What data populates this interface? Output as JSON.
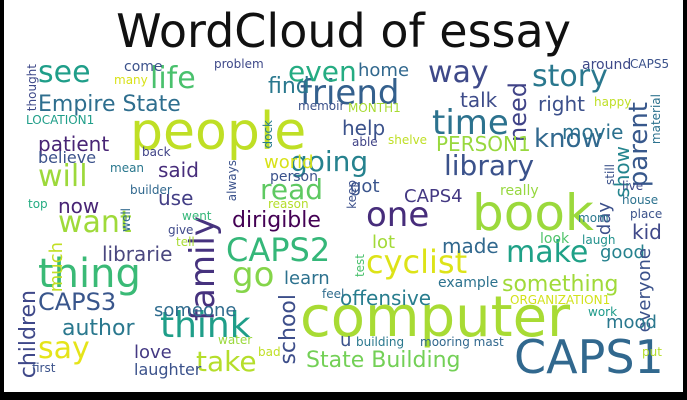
{
  "title": "WordCloud of essay",
  "words": [
    {
      "text": "people",
      "color": "#bfdf25"
    },
    {
      "text": "computer",
      "color": "#a8db34"
    },
    {
      "text": "book",
      "color": "#9bd93c"
    },
    {
      "text": "CAPS1",
      "color": "#31688e"
    },
    {
      "text": "family",
      "color": "#46327e"
    },
    {
      "text": "thing",
      "color": "#3aba76"
    },
    {
      "text": "think",
      "color": "#1f9e89"
    },
    {
      "text": "time",
      "color": "#2c728e"
    },
    {
      "text": "friend",
      "color": "#34608d"
    },
    {
      "text": "one",
      "color": "#472d7b"
    },
    {
      "text": "CAPS2",
      "color": "#35b779"
    },
    {
      "text": "go",
      "color": "#85d54a"
    },
    {
      "text": "going",
      "color": "#26828e"
    },
    {
      "text": "story",
      "color": "#2a788e"
    },
    {
      "text": "parent",
      "color": "#38588c"
    },
    {
      "text": "know",
      "color": "#31688e"
    },
    {
      "text": "library",
      "color": "#3b528b"
    },
    {
      "text": "cyclist",
      "color": "#dde318"
    },
    {
      "text": "make",
      "color": "#1fa187"
    },
    {
      "text": "read",
      "color": "#5ec962"
    },
    {
      "text": "way",
      "color": "#3e4989"
    },
    {
      "text": "want",
      "color": "#9fda3a"
    },
    {
      "text": "see",
      "color": "#1f9e89"
    },
    {
      "text": "life",
      "color": "#4ac16d"
    },
    {
      "text": "even",
      "color": "#25ac82"
    },
    {
      "text": "say",
      "color": "#e5e419"
    },
    {
      "text": "take",
      "color": "#b5de2b"
    },
    {
      "text": "will",
      "color": "#9dd93b"
    },
    {
      "text": "author",
      "color": "#2a788e"
    },
    {
      "text": "CAPS3",
      "color": "#39568c"
    },
    {
      "text": "Empire State",
      "color": "#2e6e8e"
    },
    {
      "text": "State Building",
      "color": "#73d056"
    },
    {
      "text": "dirigible",
      "color": "#440154"
    },
    {
      "text": "offensive",
      "color": "#287d8e"
    },
    {
      "text": "something",
      "color": "#a0da39"
    },
    {
      "text": "school",
      "color": "#3d4e8a"
    },
    {
      "text": "need",
      "color": "#404387"
    },
    {
      "text": "find",
      "color": "#2a788e"
    },
    {
      "text": "home",
      "color": "#31688e"
    },
    {
      "text": "talk",
      "color": "#3e4c8a"
    },
    {
      "text": "right",
      "color": "#3c508b"
    },
    {
      "text": "movie",
      "color": "#2c718e"
    },
    {
      "text": "show",
      "color": "#25858e"
    },
    {
      "text": "help",
      "color": "#3b528b"
    },
    {
      "text": "PERSON1",
      "color": "#98d83e"
    },
    {
      "text": "got",
      "color": "#3a548c"
    },
    {
      "text": "CAPS4",
      "color": "#443983"
    },
    {
      "text": "world",
      "color": "#d8e219"
    },
    {
      "text": "patient",
      "color": "#482475"
    },
    {
      "text": "believe",
      "color": "#3b528b"
    },
    {
      "text": "said",
      "color": "#472d7b"
    },
    {
      "text": "use",
      "color": "#433e85"
    },
    {
      "text": "now",
      "color": "#482475"
    },
    {
      "text": "librarie",
      "color": "#4a477f"
    },
    {
      "text": "children",
      "color": "#3f4889"
    },
    {
      "text": "much",
      "color": "#c2df23"
    },
    {
      "text": "someone",
      "color": "#2f6c8e"
    },
    {
      "text": "love",
      "color": "#443983"
    },
    {
      "text": "laughter",
      "color": "#3b528b"
    },
    {
      "text": "lot",
      "color": "#a2da37"
    },
    {
      "text": "made",
      "color": "#31688e"
    },
    {
      "text": "learn",
      "color": "#2c718e"
    },
    {
      "text": "kid",
      "color": "#3f4889"
    },
    {
      "text": "good",
      "color": "#26828e"
    },
    {
      "text": "everyone",
      "color": "#3b528b"
    },
    {
      "text": "mood",
      "color": "#2a788e"
    },
    {
      "text": "day",
      "color": "#3c508b"
    },
    {
      "text": "really",
      "color": "#97d83f"
    },
    {
      "text": "look",
      "color": "#50c46a"
    },
    {
      "text": "laugh",
      "color": "#21918c"
    },
    {
      "text": "example",
      "color": "#2c728e"
    },
    {
      "text": "mooring mast",
      "color": "#31688e"
    },
    {
      "text": "building",
      "color": "#2a788e"
    },
    {
      "text": "feel",
      "color": "#2f6c8e"
    },
    {
      "text": "u",
      "color": "#3b528b"
    },
    {
      "text": "work",
      "color": "#1e9b8a"
    },
    {
      "text": "ORGANIZATION1",
      "color": "#d2e21b"
    },
    {
      "text": "put",
      "color": "#b5de2b"
    },
    {
      "text": "bad",
      "color": "#c0df25"
    },
    {
      "text": "first",
      "color": "#3b528b"
    },
    {
      "text": "water",
      "color": "#9bd93c"
    },
    {
      "text": "tell",
      "color": "#a8db34"
    },
    {
      "text": "give",
      "color": "#3e4989"
    },
    {
      "text": "went",
      "color": "#35b779"
    },
    {
      "text": "well",
      "color": "#31688e"
    },
    {
      "text": "top",
      "color": "#25ac82"
    },
    {
      "text": "reason",
      "color": "#b5de2b"
    },
    {
      "text": "person",
      "color": "#3b528b"
    },
    {
      "text": "builder",
      "color": "#31688e"
    },
    {
      "text": "mean",
      "color": "#2a788e"
    },
    {
      "text": "back",
      "color": "#404387"
    },
    {
      "text": "always",
      "color": "#3b528b"
    },
    {
      "text": "keep",
      "color": "#3c508b"
    },
    {
      "text": "test",
      "color": "#4ac16d"
    },
    {
      "text": "shelve",
      "color": "#bfdf25"
    },
    {
      "text": "able",
      "color": "#404387"
    },
    {
      "text": "dock",
      "color": "#287d8e"
    },
    {
      "text": "memoir",
      "color": "#3b528b"
    },
    {
      "text": "MONTH1",
      "color": "#a8db34"
    },
    {
      "text": "problem",
      "color": "#3e4989"
    },
    {
      "text": "come",
      "color": "#3b528b"
    },
    {
      "text": "many",
      "color": "#d8e219"
    },
    {
      "text": "thought",
      "color": "#3e4989"
    },
    {
      "text": "LOCATION1",
      "color": "#1f9e89"
    },
    {
      "text": "still",
      "color": "#3b528b"
    },
    {
      "text": "live",
      "color": "#3e4989"
    },
    {
      "text": "house",
      "color": "#2c728e"
    },
    {
      "text": "place",
      "color": "#3b528b"
    },
    {
      "text": "mom",
      "color": "#2a788e"
    },
    {
      "text": "material",
      "color": "#2c728e"
    },
    {
      "text": "happy",
      "color": "#bfdf25"
    },
    {
      "text": "around",
      "color": "#3e4989"
    },
    {
      "text": "CAPS5",
      "color": "#3b528b"
    }
  ]
}
